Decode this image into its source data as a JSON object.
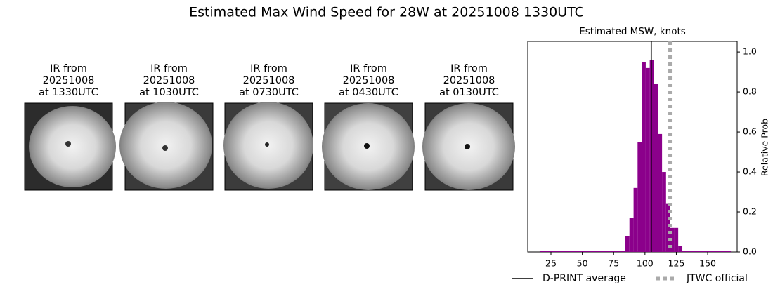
{
  "title": "Estimated Max Wind Speed for 28W at 20251008 1330UTC",
  "panels": [
    {
      "lines": [
        "IR from",
        "20251008",
        "at 1330UTC"
      ]
    },
    {
      "lines": [
        "IR from",
        "20251008",
        "at 1030UTC"
      ]
    },
    {
      "lines": [
        "IR from",
        "20251008",
        "at 0730UTC"
      ]
    },
    {
      "lines": [
        "IR from",
        "20251008",
        "at 0430UTC"
      ]
    },
    {
      "lines": [
        "IR from",
        "20251008",
        "at 0130UTC"
      ]
    }
  ],
  "chart_data": {
    "type": "histogram",
    "title": "Estimated MSW, knots",
    "y_label": "Relative Prob",
    "color": "#8b008b",
    "bins": [
      16,
      84.4,
      87.6,
      90.9,
      94.1,
      97.4,
      100.6,
      103.8,
      107.1,
      110.3,
      113.6,
      116.8,
      120.0,
      123.3,
      126.5,
      129.8,
      168.5
    ],
    "values": [
      0.004,
      0.08,
      0.17,
      0.32,
      0.55,
      0.95,
      0.92,
      0.96,
      0.84,
      0.59,
      0.4,
      0.24,
      0.12,
      0.12,
      0.03,
      0.004
    ],
    "xlim": [
      6.5,
      173.5
    ],
    "ylim": [
      0,
      1.053
    ],
    "xticks": [
      25,
      50,
      75,
      100,
      125,
      150
    ],
    "yticks": [
      {
        "value": 0,
        "label": "0.0"
      },
      {
        "value": 0.2,
        "label": "0.2"
      },
      {
        "value": 0.4,
        "label": "0.4"
      },
      {
        "value": 0.6,
        "label": "0.6"
      },
      {
        "value": 0.8,
        "label": "0.8"
      },
      {
        "value": 1.0,
        "label": "1.0"
      }
    ],
    "reference_lines": [
      {
        "name": "D-PRINT average",
        "value": 105,
        "color": "#000000",
        "style": "solid"
      },
      {
        "name": "JTWC official",
        "value": 120,
        "color": "#aaaaaa",
        "style": "dotted"
      }
    ]
  }
}
